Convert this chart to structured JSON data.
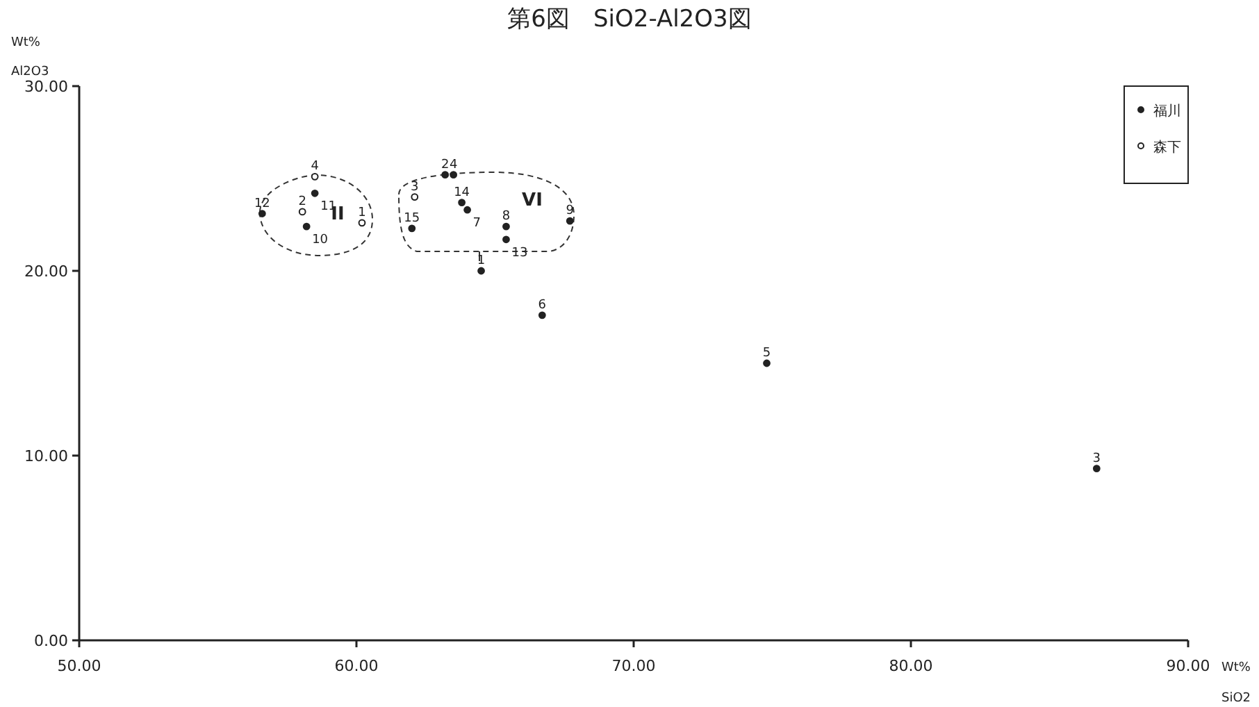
{
  "chart_data": {
    "type": "scatter",
    "title": "第6図　SiO2-Al2O3図",
    "xlabel": "SiO2",
    "ylabel": "Al2O3",
    "xlim": [
      50,
      90
    ],
    "ylim": [
      0,
      30
    ],
    "xticks": [
      {
        "value": 50,
        "label": "50.00"
      },
      {
        "value": 60,
        "label": "60.00"
      },
      {
        "value": 70,
        "label": "70.00"
      },
      {
        "value": 80,
        "label": "80.00"
      },
      {
        "value": 90,
        "label": "90.00"
      }
    ],
    "yticks": [
      {
        "value": 0,
        "label": "0.00"
      },
      {
        "value": 10,
        "label": "10.00"
      },
      {
        "value": 20,
        "label": "20.00"
      },
      {
        "value": 30,
        "label": "30.00"
      }
    ],
    "marker": "circle",
    "legend": "top right",
    "series": [
      {
        "name": "福川",
        "color": "#222222",
        "x": [
          64.5,
          63.2,
          86.7,
          63.5,
          74.8,
          66.7,
          64.0,
          65.4,
          67.7,
          58.2,
          58.5,
          56.6,
          65.4,
          63.8,
          62.0
        ],
        "values": [
          20.0,
          25.2,
          9.3,
          25.2,
          15.0,
          17.6,
          23.3,
          22.4,
          22.7,
          22.4,
          24.2,
          23.1,
          21.7,
          23.7,
          22.3
        ]
      },
      {
        "name": "森下",
        "color": "#222222",
        "x": [
          60.2,
          58.05,
          62.1,
          58.5
        ],
        "values": [
          22.6,
          23.2,
          24.0,
          25.1
        ]
      }
    ],
    "annotations": [
      "Wt%",
      "Wt%",
      "II",
      "VI",
      {
        "text": "1",
        "x": 64.5,
        "y": 20.0
      },
      {
        "text": "2",
        "x": 63.2,
        "y": 25.2
      },
      {
        "text": "3",
        "x": 86.7,
        "y": 9.3
      },
      {
        "text": "4",
        "x": 63.5,
        "y": 25.2
      },
      {
        "text": "5",
        "x": 74.8,
        "y": 15.0
      },
      {
        "text": "6",
        "x": 66.7,
        "y": 17.6
      },
      {
        "text": "7",
        "x": 64.0,
        "y": 23.3
      },
      {
        "text": "8",
        "x": 65.4,
        "y": 22.4
      },
      {
        "text": "9",
        "x": 67.7,
        "y": 22.7
      },
      {
        "text": "10",
        "x": 58.2,
        "y": 22.4
      },
      {
        "text": "11",
        "x": 58.5,
        "y": 24.2
      },
      {
        "text": "12",
        "x": 56.6,
        "y": 23.1
      },
      {
        "text": "13",
        "x": 65.4,
        "y": 21.7
      },
      {
        "text": "14",
        "x": 63.8,
        "y": 23.7
      },
      {
        "text": "15",
        "x": 62.0,
        "y": 22.3
      },
      {
        "text": "1",
        "x": 60.2,
        "y": 22.6
      },
      {
        "text": "2",
        "x": 58.05,
        "y": 23.2
      },
      {
        "text": "3",
        "x": 62.1,
        "y": 24.0
      },
      {
        "text": "4",
        "x": 58.5,
        "y": 25.1
      }
    ]
  }
}
